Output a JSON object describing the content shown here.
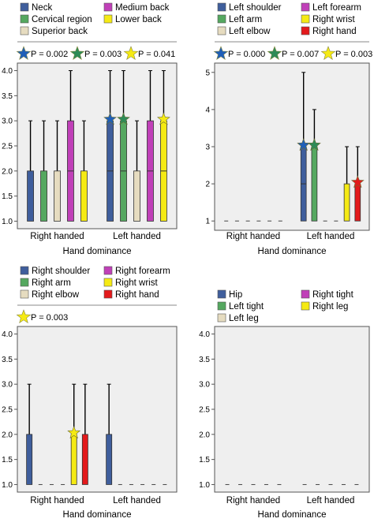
{
  "chart_data": [
    {
      "type": "box",
      "title": "",
      "legend": [
        {
          "name": "Neck",
          "color": "#3f5e9c"
        },
        {
          "name": "Medium back",
          "color": "#c040b8"
        },
        {
          "name": "Cervical region",
          "color": "#55a860"
        },
        {
          "name": "Lower back",
          "color": "#f5ea14"
        },
        {
          "name": "Superior back",
          "color": "#e6dcc0"
        }
      ],
      "pvalues": [
        {
          "label": "P = 0.002",
          "color": "#1f5fb8"
        },
        {
          "label": "P = 0.003",
          "color": "#2e8b57"
        },
        {
          "label": "P = 0.041",
          "color": "#f5ea14"
        }
      ],
      "categories": [
        "Right handed",
        "Left handed"
      ],
      "xlabel": "Hand dominance",
      "ylabel": "",
      "ylim": [
        0.85,
        4.15
      ],
      "yticks": [
        "1.0",
        "1.5",
        "2.0",
        "2.5",
        "3.0",
        "3.5",
        "4.0"
      ],
      "series": [
        {
          "name": "Neck",
          "color": "#3f5e9c",
          "boxes": [
            {
              "category": "Right handed",
              "min": 1,
              "q1": 1,
              "median": 1,
              "q3": 2,
              "max": 3
            },
            {
              "category": "Left handed",
              "min": 1,
              "q1": 1,
              "median": 2,
              "q3": 3,
              "max": 4,
              "star": "#1f5fb8"
            }
          ]
        },
        {
          "name": "Cervical region",
          "color": "#55a860",
          "boxes": [
            {
              "category": "Right handed",
              "min": 1,
              "q1": 1,
              "median": 1,
              "q3": 2,
              "max": 3
            },
            {
              "category": "Left handed",
              "min": 1,
              "q1": 1,
              "median": 2,
              "q3": 3,
              "max": 4,
              "star": "#2e8b57"
            }
          ]
        },
        {
          "name": "Superior back",
          "color": "#e6dcc0",
          "boxes": [
            {
              "category": "Right handed",
              "min": 1,
              "q1": 1,
              "median": 1,
              "q3": 2,
              "max": 3
            },
            {
              "category": "Left handed",
              "min": 1,
              "q1": 1,
              "median": 1,
              "q3": 2,
              "max": 3
            }
          ]
        },
        {
          "name": "Medium back",
          "color": "#c040b8",
          "boxes": [
            {
              "category": "Right handed",
              "min": 1,
              "q1": 1,
              "median": 2,
              "q3": 3,
              "max": 4
            },
            {
              "category": "Left handed",
              "min": 1,
              "q1": 1,
              "median": 2,
              "q3": 3,
              "max": 4
            }
          ]
        },
        {
          "name": "Lower back",
          "color": "#f5ea14",
          "boxes": [
            {
              "category": "Right handed",
              "min": 1,
              "q1": 1,
              "median": 1,
              "q3": 2,
              "max": 3
            },
            {
              "category": "Left handed",
              "min": 1,
              "q1": 1,
              "median": 2,
              "q3": 3,
              "max": 4,
              "star": "#f5ea14"
            }
          ]
        }
      ]
    },
    {
      "type": "box",
      "title": "",
      "legend": [
        {
          "name": "Left shoulder",
          "color": "#3f5e9c"
        },
        {
          "name": "Left forearm",
          "color": "#c040b8"
        },
        {
          "name": "Left arm",
          "color": "#55a860"
        },
        {
          "name": "Right wrist",
          "color": "#f5ea14"
        },
        {
          "name": "Left elbow",
          "color": "#e6dcc0"
        },
        {
          "name": "Right hand",
          "color": "#e31a1c"
        }
      ],
      "pvalues": [
        {
          "label": "P = 0.000",
          "color": "#1f5fb8"
        },
        {
          "label": "P = 0.007",
          "color": "#2e8b57"
        },
        {
          "label": "P = 0.003",
          "color": "#f5ea14"
        }
      ],
      "categories": [
        "Right handed",
        "Left handed"
      ],
      "xlabel": "Hand dominance",
      "ylabel": "",
      "ylim": [
        0.75,
        5.25
      ],
      "yticks": [
        "1",
        "2",
        "3",
        "4",
        "5"
      ],
      "series": [
        {
          "name": "Left shoulder",
          "color": "#3f5e9c",
          "boxes": [
            {
              "category": "Right handed",
              "min": 1,
              "q1": 1,
              "median": 1,
              "q3": 1,
              "max": 1
            },
            {
              "category": "Left handed",
              "min": 1,
              "q1": 1,
              "median": 2,
              "q3": 3,
              "max": 5,
              "star": "#1f5fb8"
            }
          ]
        },
        {
          "name": "Left arm",
          "color": "#55a860",
          "boxes": [
            {
              "category": "Right handed",
              "min": 1,
              "q1": 1,
              "median": 1,
              "q3": 1,
              "max": 1
            },
            {
              "category": "Left handed",
              "min": 1,
              "q1": 1,
              "median": 1,
              "q3": 3,
              "max": 4,
              "star": "#2e8b57"
            }
          ]
        },
        {
          "name": "Left elbow",
          "color": "#e6dcc0",
          "boxes": [
            {
              "category": "Right handed",
              "min": 1,
              "q1": 1,
              "median": 1,
              "q3": 1,
              "max": 1
            },
            {
              "category": "Left handed",
              "min": 1,
              "q1": 1,
              "median": 1,
              "q3": 1,
              "max": 1
            }
          ]
        },
        {
          "name": "Left forearm",
          "color": "#c040b8",
          "boxes": [
            {
              "category": "Right handed",
              "min": 1,
              "q1": 1,
              "median": 1,
              "q3": 1,
              "max": 1
            },
            {
              "category": "Left handed",
              "min": 1,
              "q1": 1,
              "median": 1,
              "q3": 1,
              "max": 1
            }
          ]
        },
        {
          "name": "Right wrist",
          "color": "#f5ea14",
          "boxes": [
            {
              "category": "Right handed",
              "min": 1,
              "q1": 1,
              "median": 1,
              "q3": 1,
              "max": 1
            },
            {
              "category": "Left handed",
              "min": 1,
              "q1": 1,
              "median": 1,
              "q3": 2,
              "max": 3
            }
          ]
        },
        {
          "name": "Right hand",
          "color": "#e31a1c",
          "boxes": [
            {
              "category": "Right handed",
              "min": 1,
              "q1": 1,
              "median": 1,
              "q3": 1,
              "max": 1
            },
            {
              "category": "Left handed",
              "min": 1,
              "q1": 1,
              "median": 1,
              "q3": 2,
              "max": 3,
              "star": "#e31a1c"
            }
          ]
        }
      ]
    },
    {
      "type": "box",
      "title": "",
      "legend": [
        {
          "name": "Right shoulder",
          "color": "#3f5e9c"
        },
        {
          "name": "Right forearm",
          "color": "#c040b8"
        },
        {
          "name": "Right arm",
          "color": "#55a860"
        },
        {
          "name": "Right wrist",
          "color": "#f5ea14"
        },
        {
          "name": "Right elbow",
          "color": "#e6dcc0"
        },
        {
          "name": "Right hand",
          "color": "#e31a1c"
        }
      ],
      "pvalues": [
        {
          "label": "P = 0.003",
          "color": "#f5ea14"
        }
      ],
      "categories": [
        "Right handed",
        "Left handed"
      ],
      "xlabel": "Hand dominance",
      "ylabel": "",
      "ylim": [
        0.85,
        4.15
      ],
      "yticks": [
        "1.0",
        "1.5",
        "2.0",
        "2.5",
        "3.0",
        "3.5",
        "4.0"
      ],
      "series": [
        {
          "name": "Right shoulder",
          "color": "#3f5e9c",
          "boxes": [
            {
              "category": "Right handed",
              "min": 1,
              "q1": 1,
              "median": 1,
              "q3": 2,
              "max": 3
            },
            {
              "category": "Left handed",
              "min": 1,
              "q1": 1,
              "median": 1,
              "q3": 2,
              "max": 3
            }
          ]
        },
        {
          "name": "Right arm",
          "color": "#55a860",
          "boxes": [
            {
              "category": "Right handed",
              "min": 1,
              "q1": 1,
              "median": 1,
              "q3": 1,
              "max": 1
            },
            {
              "category": "Left handed",
              "min": 1,
              "q1": 1,
              "median": 1,
              "q3": 1,
              "max": 1
            }
          ]
        },
        {
          "name": "Right elbow",
          "color": "#e6dcc0",
          "boxes": [
            {
              "category": "Right handed",
              "min": 1,
              "q1": 1,
              "median": 1,
              "q3": 1,
              "max": 1
            },
            {
              "category": "Left handed",
              "min": 1,
              "q1": 1,
              "median": 1,
              "q3": 1,
              "max": 1
            }
          ]
        },
        {
          "name": "Right forearm",
          "color": "#c040b8",
          "boxes": [
            {
              "category": "Right handed",
              "min": 1,
              "q1": 1,
              "median": 1,
              "q3": 1,
              "max": 1
            },
            {
              "category": "Left handed",
              "min": 1,
              "q1": 1,
              "median": 1,
              "q3": 1,
              "max": 1
            }
          ]
        },
        {
          "name": "Right wrist",
          "color": "#f5ea14",
          "boxes": [
            {
              "category": "Right handed",
              "min": 1,
              "q1": 1,
              "median": 1,
              "q3": 2,
              "max": 3,
              "star": "#f5ea14"
            },
            {
              "category": "Left handed",
              "min": 1,
              "q1": 1,
              "median": 1,
              "q3": 1,
              "max": 1
            }
          ]
        },
        {
          "name": "Right hand",
          "color": "#e31a1c",
          "boxes": [
            {
              "category": "Right handed",
              "min": 1,
              "q1": 1,
              "median": 1,
              "q3": 2,
              "max": 3
            },
            {
              "category": "Left handed",
              "min": 1,
              "q1": 1,
              "median": 1,
              "q3": 1,
              "max": 1
            }
          ]
        }
      ]
    },
    {
      "type": "box",
      "title": "",
      "legend": [
        {
          "name": "Hip",
          "color": "#3f5e9c"
        },
        {
          "name": "Right tight",
          "color": "#c040b8"
        },
        {
          "name": "Left tight",
          "color": "#55a860"
        },
        {
          "name": "Right leg",
          "color": "#f5ea14"
        },
        {
          "name": "Left leg",
          "color": "#e6dcc0"
        }
      ],
      "pvalues": [],
      "categories": [
        "Right handed",
        "Left handed"
      ],
      "xlabel": "Hand dominance",
      "ylabel": "",
      "ylim": [
        0.85,
        4.15
      ],
      "yticks": [
        "1.0",
        "1.5",
        "2.0",
        "2.5",
        "3.0",
        "3.5",
        "4.0"
      ],
      "series": [
        {
          "name": "Hip",
          "color": "#3f5e9c",
          "boxes": [
            {
              "category": "Right handed",
              "min": 1,
              "q1": 1,
              "median": 1,
              "q3": 1,
              "max": 1
            },
            {
              "category": "Left handed",
              "min": 1,
              "q1": 1,
              "median": 1,
              "q3": 1,
              "max": 1
            }
          ]
        },
        {
          "name": "Left tight",
          "color": "#55a860",
          "boxes": [
            {
              "category": "Right handed",
              "min": 1,
              "q1": 1,
              "median": 1,
              "q3": 1,
              "max": 1
            },
            {
              "category": "Left handed",
              "min": 1,
              "q1": 1,
              "median": 1,
              "q3": 1,
              "max": 1
            }
          ]
        },
        {
          "name": "Left leg",
          "color": "#e6dcc0",
          "boxes": [
            {
              "category": "Right handed",
              "min": 1,
              "q1": 1,
              "median": 1,
              "q3": 1,
              "max": 1
            },
            {
              "category": "Left handed",
              "min": 1,
              "q1": 1,
              "median": 1,
              "q3": 1,
              "max": 1
            }
          ]
        },
        {
          "name": "Right tight",
          "color": "#c040b8",
          "boxes": [
            {
              "category": "Right handed",
              "min": 1,
              "q1": 1,
              "median": 1,
              "q3": 1,
              "max": 1
            },
            {
              "category": "Left handed",
              "min": 1,
              "q1": 1,
              "median": 1,
              "q3": 1,
              "max": 1
            }
          ]
        },
        {
          "name": "Right leg",
          "color": "#f5ea14",
          "boxes": [
            {
              "category": "Right handed",
              "min": 1,
              "q1": 1,
              "median": 1,
              "q3": 1,
              "max": 1
            },
            {
              "category": "Left handed",
              "min": 1,
              "q1": 1,
              "median": 1,
              "q3": 1,
              "max": 1
            }
          ]
        }
      ]
    }
  ]
}
